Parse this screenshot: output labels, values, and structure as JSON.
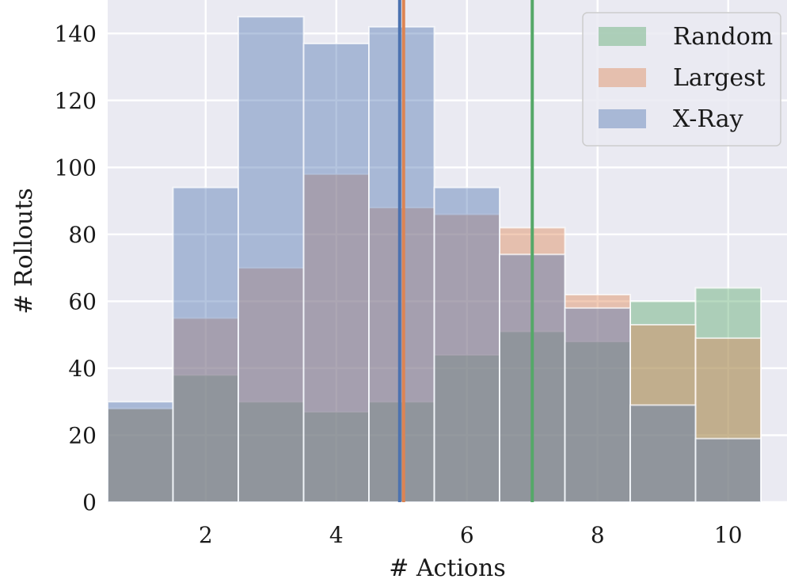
{
  "chart_data": {
    "type": "bar",
    "style": "overlaid-histogram",
    "xlabel": "# Actions",
    "ylabel": "# Rollouts",
    "xlim": [
      0.5,
      10.9
    ],
    "ylim": [
      0,
      150
    ],
    "xticks": [
      2,
      4,
      6,
      8,
      10
    ],
    "yticks": [
      0,
      20,
      40,
      60,
      80,
      100,
      120,
      140
    ],
    "grid": true,
    "background": "#eaeaf2",
    "legend_position": "top-right",
    "bins": [
      1,
      2,
      3,
      4,
      5,
      6,
      7,
      8,
      9,
      10
    ],
    "series": [
      {
        "name": "Random",
        "color": "#55a868",
        "values": [
          28,
          38,
          30,
          27,
          30,
          44,
          51,
          48,
          60,
          64
        ]
      },
      {
        "name": "Largest",
        "color": "#dd8452",
        "values": [
          28,
          55,
          70,
          98,
          88,
          86,
          82,
          62,
          53,
          49
        ]
      },
      {
        "name": "X-Ray",
        "color": "#4c72b0",
        "values": [
          30,
          94,
          145,
          137,
          142,
          94,
          74,
          58,
          29,
          19
        ]
      }
    ],
    "vlines": [
      {
        "series": "Random",
        "x": 7.0,
        "color": "#55a868"
      },
      {
        "series": "Largest",
        "x": 5.03,
        "color": "#dd8452"
      },
      {
        "series": "X-Ray",
        "x": 4.97,
        "color": "#4c72b0"
      }
    ]
  }
}
